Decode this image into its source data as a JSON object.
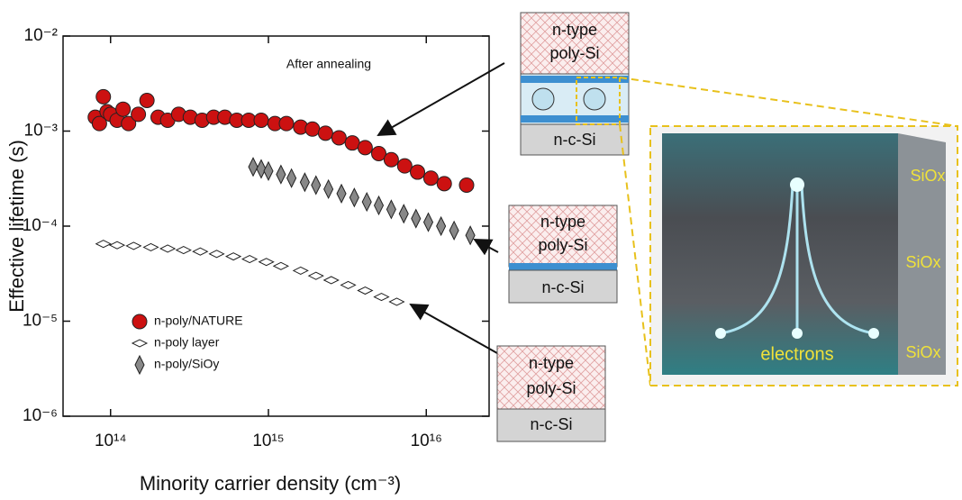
{
  "chart_data": {
    "type": "scatter",
    "xlabel": "Minority carrier density (cm⁻³)",
    "ylabel": "Effective lifetime (s)",
    "annotation": "After annealing",
    "log_x": true,
    "log_y": true,
    "legend": "lower left",
    "xlim": [
      50000000000000.0,
      2.5e+16
    ],
    "ylim": [
      1e-06,
      0.01
    ],
    "xticks": [
      {
        "value": 100000000000000.0,
        "label": "10¹⁴"
      },
      {
        "value": 1000000000000000.0,
        "label": "10¹⁵"
      },
      {
        "value": 1e+16,
        "label": "10¹⁶"
      }
    ],
    "yticks": [
      {
        "value": 1e-06,
        "label": "10⁻⁶"
      },
      {
        "value": 1e-05,
        "label": "10⁻⁵"
      },
      {
        "value": 0.0001,
        "label": "10⁻⁴"
      },
      {
        "value": 0.001,
        "label": "10⁻³"
      },
      {
        "value": 0.01,
        "label": "10⁻²"
      }
    ],
    "series": [
      {
        "name": "n-poly/NATURE",
        "color": "#cc1111",
        "marker": "circle",
        "x": [
          80000000000000.0,
          85000000000000.0,
          90000000000000.0,
          95000000000000.0,
          100000000000000.0,
          110000000000000.0,
          120000000000000.0,
          130000000000000.0,
          150000000000000.0,
          170000000000000.0,
          200000000000000.0,
          230000000000000.0,
          270000000000000.0,
          320000000000000.0,
          380000000000000.0,
          450000000000000.0,
          530000000000000.0,
          630000000000000.0,
          750000000000000.0,
          900000000000000.0,
          1100000000000000.0,
          1300000000000000.0,
          1600000000000000.0,
          1900000000000000.0,
          2300000000000000.0,
          2800000000000000.0,
          3400000000000000.0,
          4100000000000000.0,
          5000000000000000.0,
          6000000000000000.0,
          7300000000000000.0,
          8800000000000000.0,
          1.07e+16,
          1.3e+16,
          1.8e+16
        ],
        "values": [
          0.0014,
          0.0012,
          0.0023,
          0.0016,
          0.0015,
          0.0013,
          0.0017,
          0.0012,
          0.0015,
          0.0021,
          0.0014,
          0.0013,
          0.0015,
          0.0014,
          0.0013,
          0.0014,
          0.0014,
          0.0013,
          0.0013,
          0.0013,
          0.0012,
          0.0012,
          0.0011,
          0.00105,
          0.00095,
          0.00085,
          0.00075,
          0.00067,
          0.00058,
          0.0005,
          0.00043,
          0.00037,
          0.00032,
          0.00028,
          0.00027
        ]
      },
      {
        "name": "n-poly layer",
        "color": "#ffffff",
        "marker": "hdiamond",
        "x": [
          90000000000000.0,
          110000000000000.0,
          140000000000000.0,
          180000000000000.0,
          230000000000000.0,
          290000000000000.0,
          370000000000000.0,
          470000000000000.0,
          600000000000000.0,
          760000000000000.0,
          970000000000000.0,
          1200000000000000.0,
          1600000000000000.0,
          2000000000000000.0,
          2500000000000000.0,
          3200000000000000.0,
          4100000000000000.0,
          5200000000000000.0,
          6500000000000000.0
        ],
        "values": [
          6.5e-05,
          6.3e-05,
          6.2e-05,
          6e-05,
          5.8e-05,
          5.6e-05,
          5.4e-05,
          5.1e-05,
          4.8e-05,
          4.5e-05,
          4.2e-05,
          3.8e-05,
          3.4e-05,
          3e-05,
          2.7e-05,
          2.4e-05,
          2.1e-05,
          1.8e-05,
          1.6e-05
        ]
      },
      {
        "name": "n-poly/SiOy",
        "color": "#888888",
        "marker": "vdiamond",
        "x": [
          800000000000000.0,
          900000000000000.0,
          1000000000000000.0,
          1200000000000000.0,
          1400000000000000.0,
          1700000000000000.0,
          2000000000000000.0,
          2400000000000000.0,
          2900000000000000.0,
          3500000000000000.0,
          4200000000000000.0,
          5000000000000000.0,
          6000000000000000.0,
          7200000000000000.0,
          8600000000000000.0,
          1.03e+16,
          1.24e+16,
          1.5e+16,
          1.9e+16
        ],
        "values": [
          0.00042,
          0.0004,
          0.00038,
          0.00035,
          0.00032,
          0.00029,
          0.00027,
          0.000245,
          0.00022,
          0.0002,
          0.00018,
          0.000165,
          0.00015,
          0.000135,
          0.00012,
          0.00011,
          0.0001,
          9e-05,
          8e-05
        ]
      }
    ]
  },
  "schematics": [
    {
      "top_line1": "n-type",
      "top_line2": "poly-Si",
      "bottom": "n-c-Si"
    },
    {
      "top_line1": "n-type",
      "top_line2": "poly-Si",
      "bottom": "n-c-Si"
    },
    {
      "top_line1": "n-type",
      "top_line2": "poly-Si",
      "bottom": "n-c-Si"
    }
  ],
  "illustration": {
    "layers": [
      "SiOx",
      "SiOx",
      "SiOx"
    ],
    "caption": "electrons"
  }
}
